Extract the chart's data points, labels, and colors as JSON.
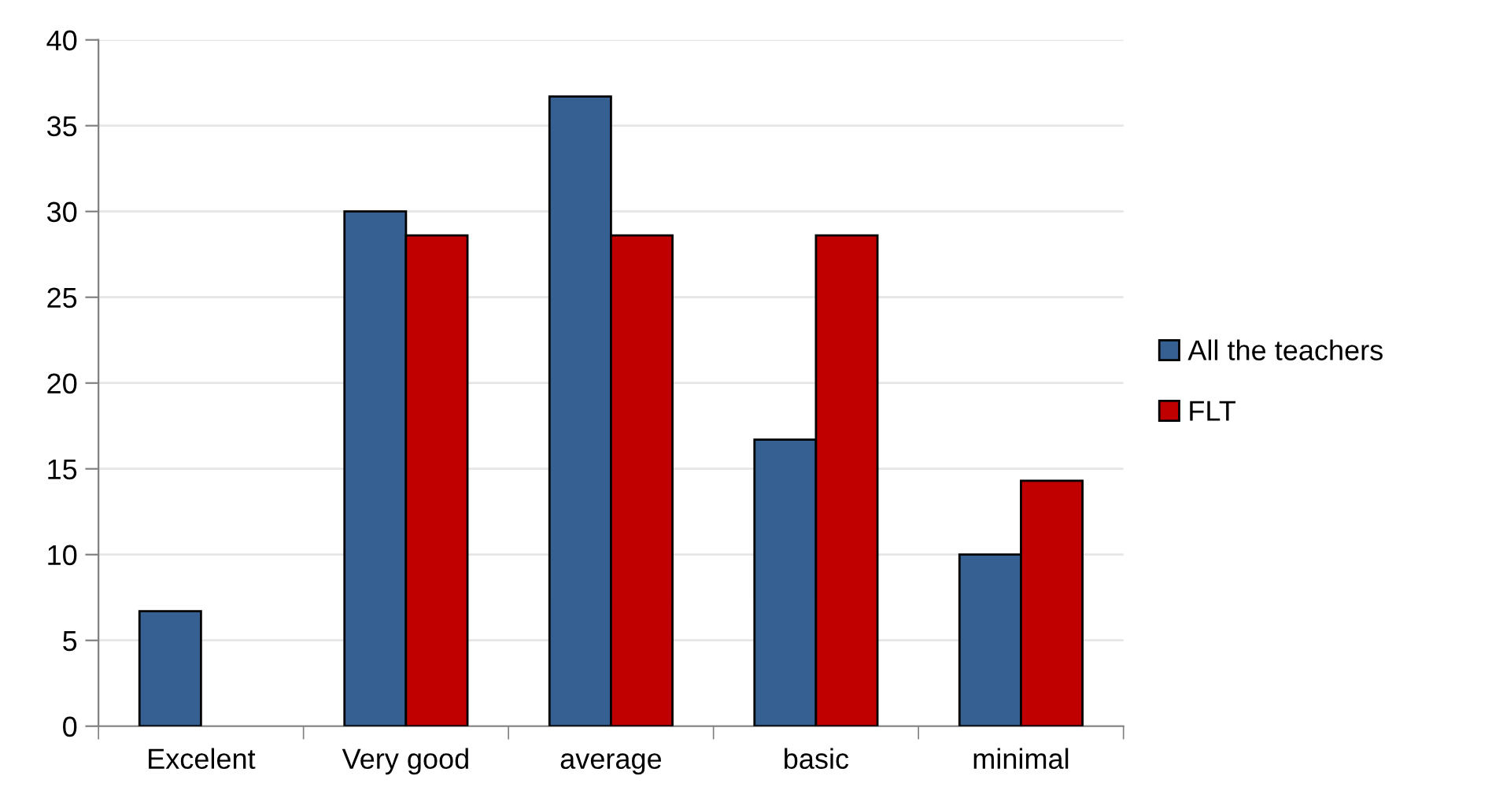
{
  "chart_data": {
    "type": "bar",
    "categories": [
      "Excelent",
      "Very good",
      "average",
      "basic",
      "minimal"
    ],
    "series": [
      {
        "name": "All the teachers",
        "color": "#376092",
        "values": [
          6.7,
          30,
          36.7,
          16.7,
          10
        ]
      },
      {
        "name": "FLT",
        "color": "#c00000",
        "values": [
          0,
          28.6,
          28.6,
          28.6,
          14.3
        ]
      }
    ],
    "ylim": [
      0,
      40
    ],
    "yticks": [
      0,
      5,
      10,
      15,
      20,
      25,
      30,
      35,
      40
    ],
    "grid": "y",
    "legend": "right"
  }
}
